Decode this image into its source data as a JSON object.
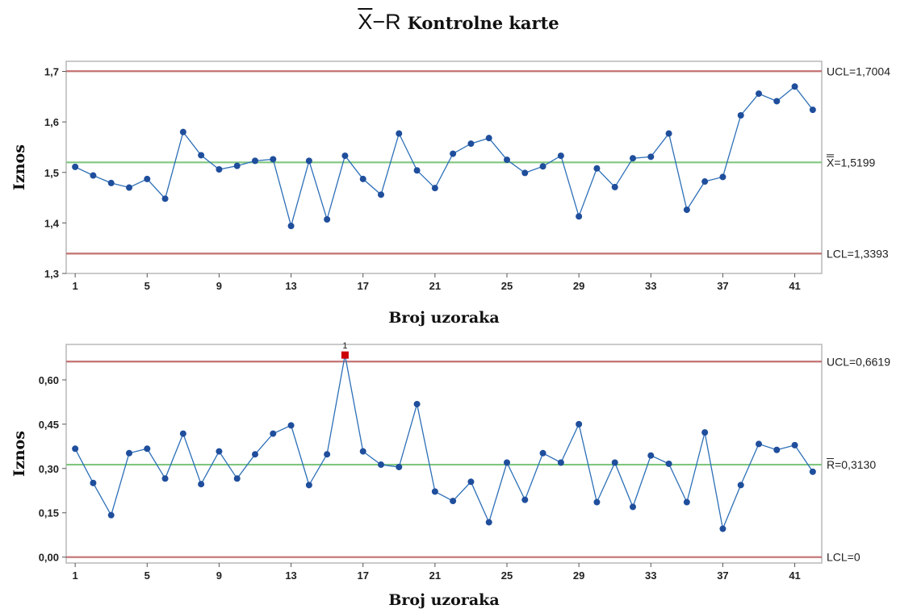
{
  "title": {
    "symbol_x": "X",
    "symbol_dash": "−",
    "symbol_r": "R",
    "text": "Kontrolne karte"
  },
  "chart_data": [
    {
      "type": "line",
      "name": "xbar-chart",
      "ylabel": "Iznos",
      "xlabel": "Broj uzoraka",
      "x_ticks": [
        "1",
        "5",
        "9",
        "13",
        "17",
        "21",
        "25",
        "29",
        "33",
        "37",
        "41"
      ],
      "y_ticks": [
        "1,3",
        "1,4",
        "1,5",
        "1,6",
        "1,7"
      ],
      "xlim": [
        0.5,
        42.5
      ],
      "ylim": [
        1.3,
        1.72
      ],
      "grid": false,
      "line_color": "#2c6fb7",
      "point_color": "#1f4e9c",
      "x": [
        1,
        2,
        3,
        4,
        5,
        6,
        7,
        8,
        9,
        10,
        11,
        12,
        13,
        14,
        15,
        16,
        17,
        18,
        19,
        20,
        21,
        22,
        23,
        24,
        25,
        26,
        27,
        28,
        29,
        30,
        31,
        32,
        33,
        34,
        35,
        36,
        37,
        38,
        39,
        40,
        41,
        42
      ],
      "values": [
        1.511,
        1.494,
        1.479,
        1.47,
        1.487,
        1.448,
        1.58,
        1.534,
        1.506,
        1.513,
        1.523,
        1.526,
        1.394,
        1.523,
        1.407,
        1.533,
        1.487,
        1.456,
        1.577,
        1.504,
        1.469,
        1.537,
        1.557,
        1.568,
        1.525,
        1.499,
        1.512,
        1.533,
        1.413,
        1.508,
        1.471,
        1.528,
        1.531,
        1.577,
        1.426,
        1.482,
        1.491,
        1.613,
        1.656,
        1.641,
        1.67,
        1.624
      ],
      "reference_lines": [
        {
          "label": "UCL=1,7004",
          "value": 1.7004,
          "color": "#c27070"
        },
        {
          "label": "=X=1,5199",
          "value": 1.5199,
          "color": "#7fc67f"
        },
        {
          "label": "LCL=1,3393",
          "value": 1.3393,
          "color": "#c27070"
        }
      ]
    },
    {
      "type": "line",
      "name": "r-chart",
      "ylabel": "Iznos",
      "xlabel": "Broj uzoraka",
      "x_ticks": [
        "1",
        "5",
        "9",
        "13",
        "17",
        "21",
        "25",
        "29",
        "33",
        "37",
        "41"
      ],
      "y_ticks": [
        "0,00",
        "0,15",
        "0,30",
        "0,45",
        "0,60"
      ],
      "xlim": [
        0.5,
        42.5
      ],
      "ylim": [
        -0.02,
        0.72
      ],
      "grid": false,
      "line_color": "#2c6fb7",
      "point_color": "#1f4e9c",
      "out_of_control_color": "#cc0000",
      "out_of_control_marker": "1",
      "x": [
        1,
        2,
        3,
        4,
        5,
        6,
        7,
        8,
        9,
        10,
        11,
        12,
        13,
        14,
        15,
        16,
        17,
        18,
        19,
        20,
        21,
        22,
        23,
        24,
        25,
        26,
        27,
        28,
        29,
        30,
        31,
        32,
        33,
        34,
        35,
        36,
        37,
        38,
        39,
        40,
        41,
        42
      ],
      "values": [
        0.367,
        0.251,
        0.142,
        0.352,
        0.367,
        0.266,
        0.418,
        0.247,
        0.358,
        0.266,
        0.348,
        0.418,
        0.446,
        0.244,
        0.348,
        0.684,
        0.358,
        0.313,
        0.305,
        0.518,
        0.222,
        0.19,
        0.255,
        0.118,
        0.32,
        0.194,
        0.352,
        0.32,
        0.45,
        0.186,
        0.32,
        0.17,
        0.344,
        0.316,
        0.186,
        0.422,
        0.096,
        0.244,
        0.383,
        0.363,
        0.379,
        0.289
      ],
      "out_of_control_points": [
        16
      ],
      "reference_lines": [
        {
          "label": "UCL=0,6619",
          "value": 0.6619,
          "color": "#c27070"
        },
        {
          "label": "R=0,3130",
          "value": 0.313,
          "color": "#7fc67f"
        },
        {
          "label": "LCL=0",
          "value": 0.0,
          "color": "#c27070"
        }
      ]
    }
  ]
}
